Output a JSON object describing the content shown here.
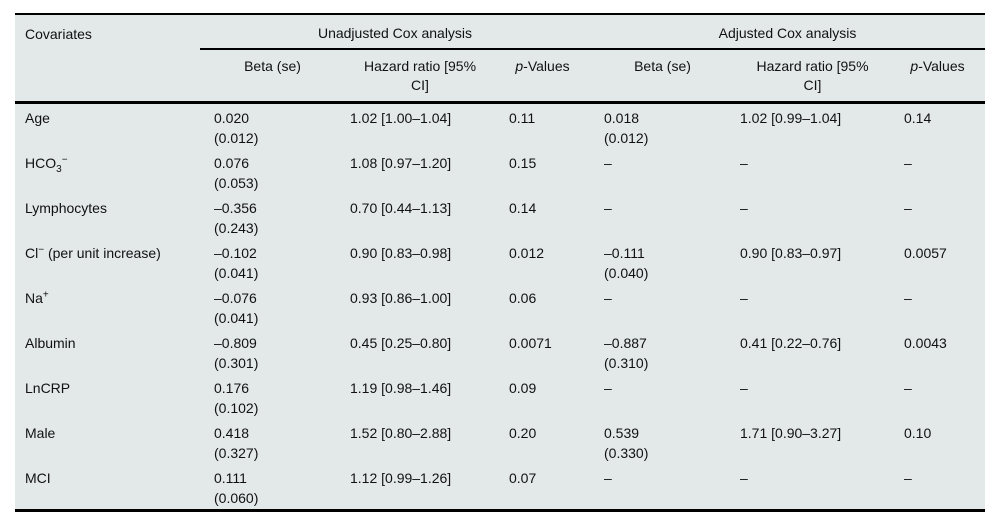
{
  "colors": {
    "table_bg": "#e3e9e9",
    "rule": "#000000",
    "text": "#111111"
  },
  "table": {
    "covariates_header": "Covariates",
    "group_headers": {
      "unadjusted": "Unadjusted Cox analysis",
      "adjusted": "Adjusted Cox analysis"
    },
    "sub_headers": {
      "beta_se": "Beta (se)",
      "hazard": "Hazard ratio [95% CI]",
      "p": {
        "italic": "p",
        "rest": "-Values"
      }
    },
    "rows": [
      {
        "cov": {
          "pre": "Age"
        },
        "u_beta": "0.020",
        "u_se": "(0.012)",
        "u_hr": "1.02 [1.00–1.04]",
        "u_p": "0.11",
        "a_beta": "0.018",
        "a_se": "(0.012)",
        "a_hr": "1.02 [0.99–1.04]",
        "a_p": "0.14"
      },
      {
        "cov": {
          "pre": "HCO",
          "sub": "3",
          "sup": "−"
        },
        "u_beta": "0.076",
        "u_se": "(0.053)",
        "u_hr": "1.08 [0.97–1.20]",
        "u_p": "0.15",
        "a_beta": "–",
        "a_se": "",
        "a_hr": "–",
        "a_p": "–"
      },
      {
        "cov": {
          "pre": "Lymphocytes"
        },
        "u_beta": "–0.356",
        "u_se": "(0.243)",
        "u_hr": "0.70 [0.44–1.13]",
        "u_p": "0.14",
        "a_beta": "–",
        "a_se": "",
        "a_hr": "–",
        "a_p": "–"
      },
      {
        "cov": {
          "pre": "Cl",
          "sup": "−",
          "post": " (per unit increase)"
        },
        "u_beta": "–0.102",
        "u_se": "(0.041)",
        "u_hr": "0.90 [0.83–0.98]",
        "u_p": "0.012",
        "a_beta": "–0.111",
        "a_se": "(0.040)",
        "a_hr": "0.90 [0.83–0.97]",
        "a_p": "0.0057"
      },
      {
        "cov": {
          "pre": "Na",
          "sup": "+"
        },
        "u_beta": "–0.076",
        "u_se": "(0.041)",
        "u_hr": "0.93 [0.86–1.00]",
        "u_p": "0.06",
        "a_beta": "–",
        "a_se": "",
        "a_hr": "–",
        "a_p": "–"
      },
      {
        "cov": {
          "pre": "Albumin"
        },
        "u_beta": "–0.809",
        "u_se": "(0.301)",
        "u_hr": "0.45 [0.25–0.80]",
        "u_p": "0.0071",
        "a_beta": "–0.887",
        "a_se": "(0.310)",
        "a_hr": "0.41 [0.22–0.76]",
        "a_p": "0.0043"
      },
      {
        "cov": {
          "pre": "LnCRP"
        },
        "u_beta": "0.176",
        "u_se": "(0.102)",
        "u_hr": "1.19 [0.98–1.46]",
        "u_p": "0.09",
        "a_beta": "–",
        "a_se": "",
        "a_hr": "–",
        "a_p": "–"
      },
      {
        "cov": {
          "pre": "Male"
        },
        "u_beta": "0.418",
        "u_se": "(0.327)",
        "u_hr": "1.52 [0.80–2.88]",
        "u_p": "0.20",
        "a_beta": "0.539",
        "a_se": "(0.330)",
        "a_hr": "1.71 [0.90–3.27]",
        "a_p": "0.10"
      },
      {
        "cov": {
          "pre": "MCI"
        },
        "u_beta": "0.111",
        "u_se": "(0.060)",
        "u_hr": "1.12 [0.99–1.26]",
        "u_p": "0.07",
        "a_beta": "–",
        "a_se": "",
        "a_hr": "–",
        "a_p": "–"
      }
    ]
  }
}
